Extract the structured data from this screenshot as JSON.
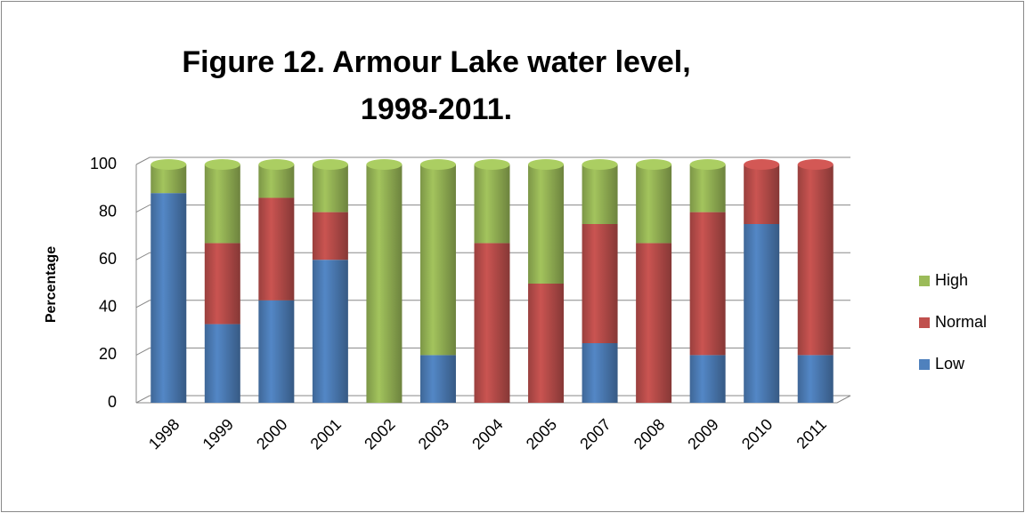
{
  "chart_data": {
    "type": "stacked_bar",
    "title": "Figure 12. Armour Lake water level, 1998-2011.",
    "y_label": "Percentage",
    "categories": [
      "1998",
      "1999",
      "2000",
      "2001",
      "2002",
      "2003",
      "2004",
      "2005",
      "2007",
      "2008",
      "2009",
      "2010",
      "2011"
    ],
    "series": [
      {
        "name": "Low",
        "color": "#4f81bd",
        "values": [
          88,
          33,
          43,
          60,
          0,
          20,
          0,
          0,
          25,
          0,
          20,
          75,
          20
        ]
      },
      {
        "name": "Normal",
        "color": "#c0504d",
        "values": [
          0,
          34,
          43,
          20,
          0,
          0,
          67,
          50,
          50,
          67,
          60,
          25,
          80
        ]
      },
      {
        "name": "High",
        "color": "#9bbb59",
        "values": [
          12,
          33,
          14,
          20,
          100,
          80,
          33,
          50,
          25,
          33,
          20,
          0,
          0
        ]
      }
    ],
    "ylim": [
      0,
      100
    ],
    "yticks": [
      0,
      20,
      40,
      60,
      80,
      100
    ],
    "grid": true,
    "legend": "right"
  }
}
